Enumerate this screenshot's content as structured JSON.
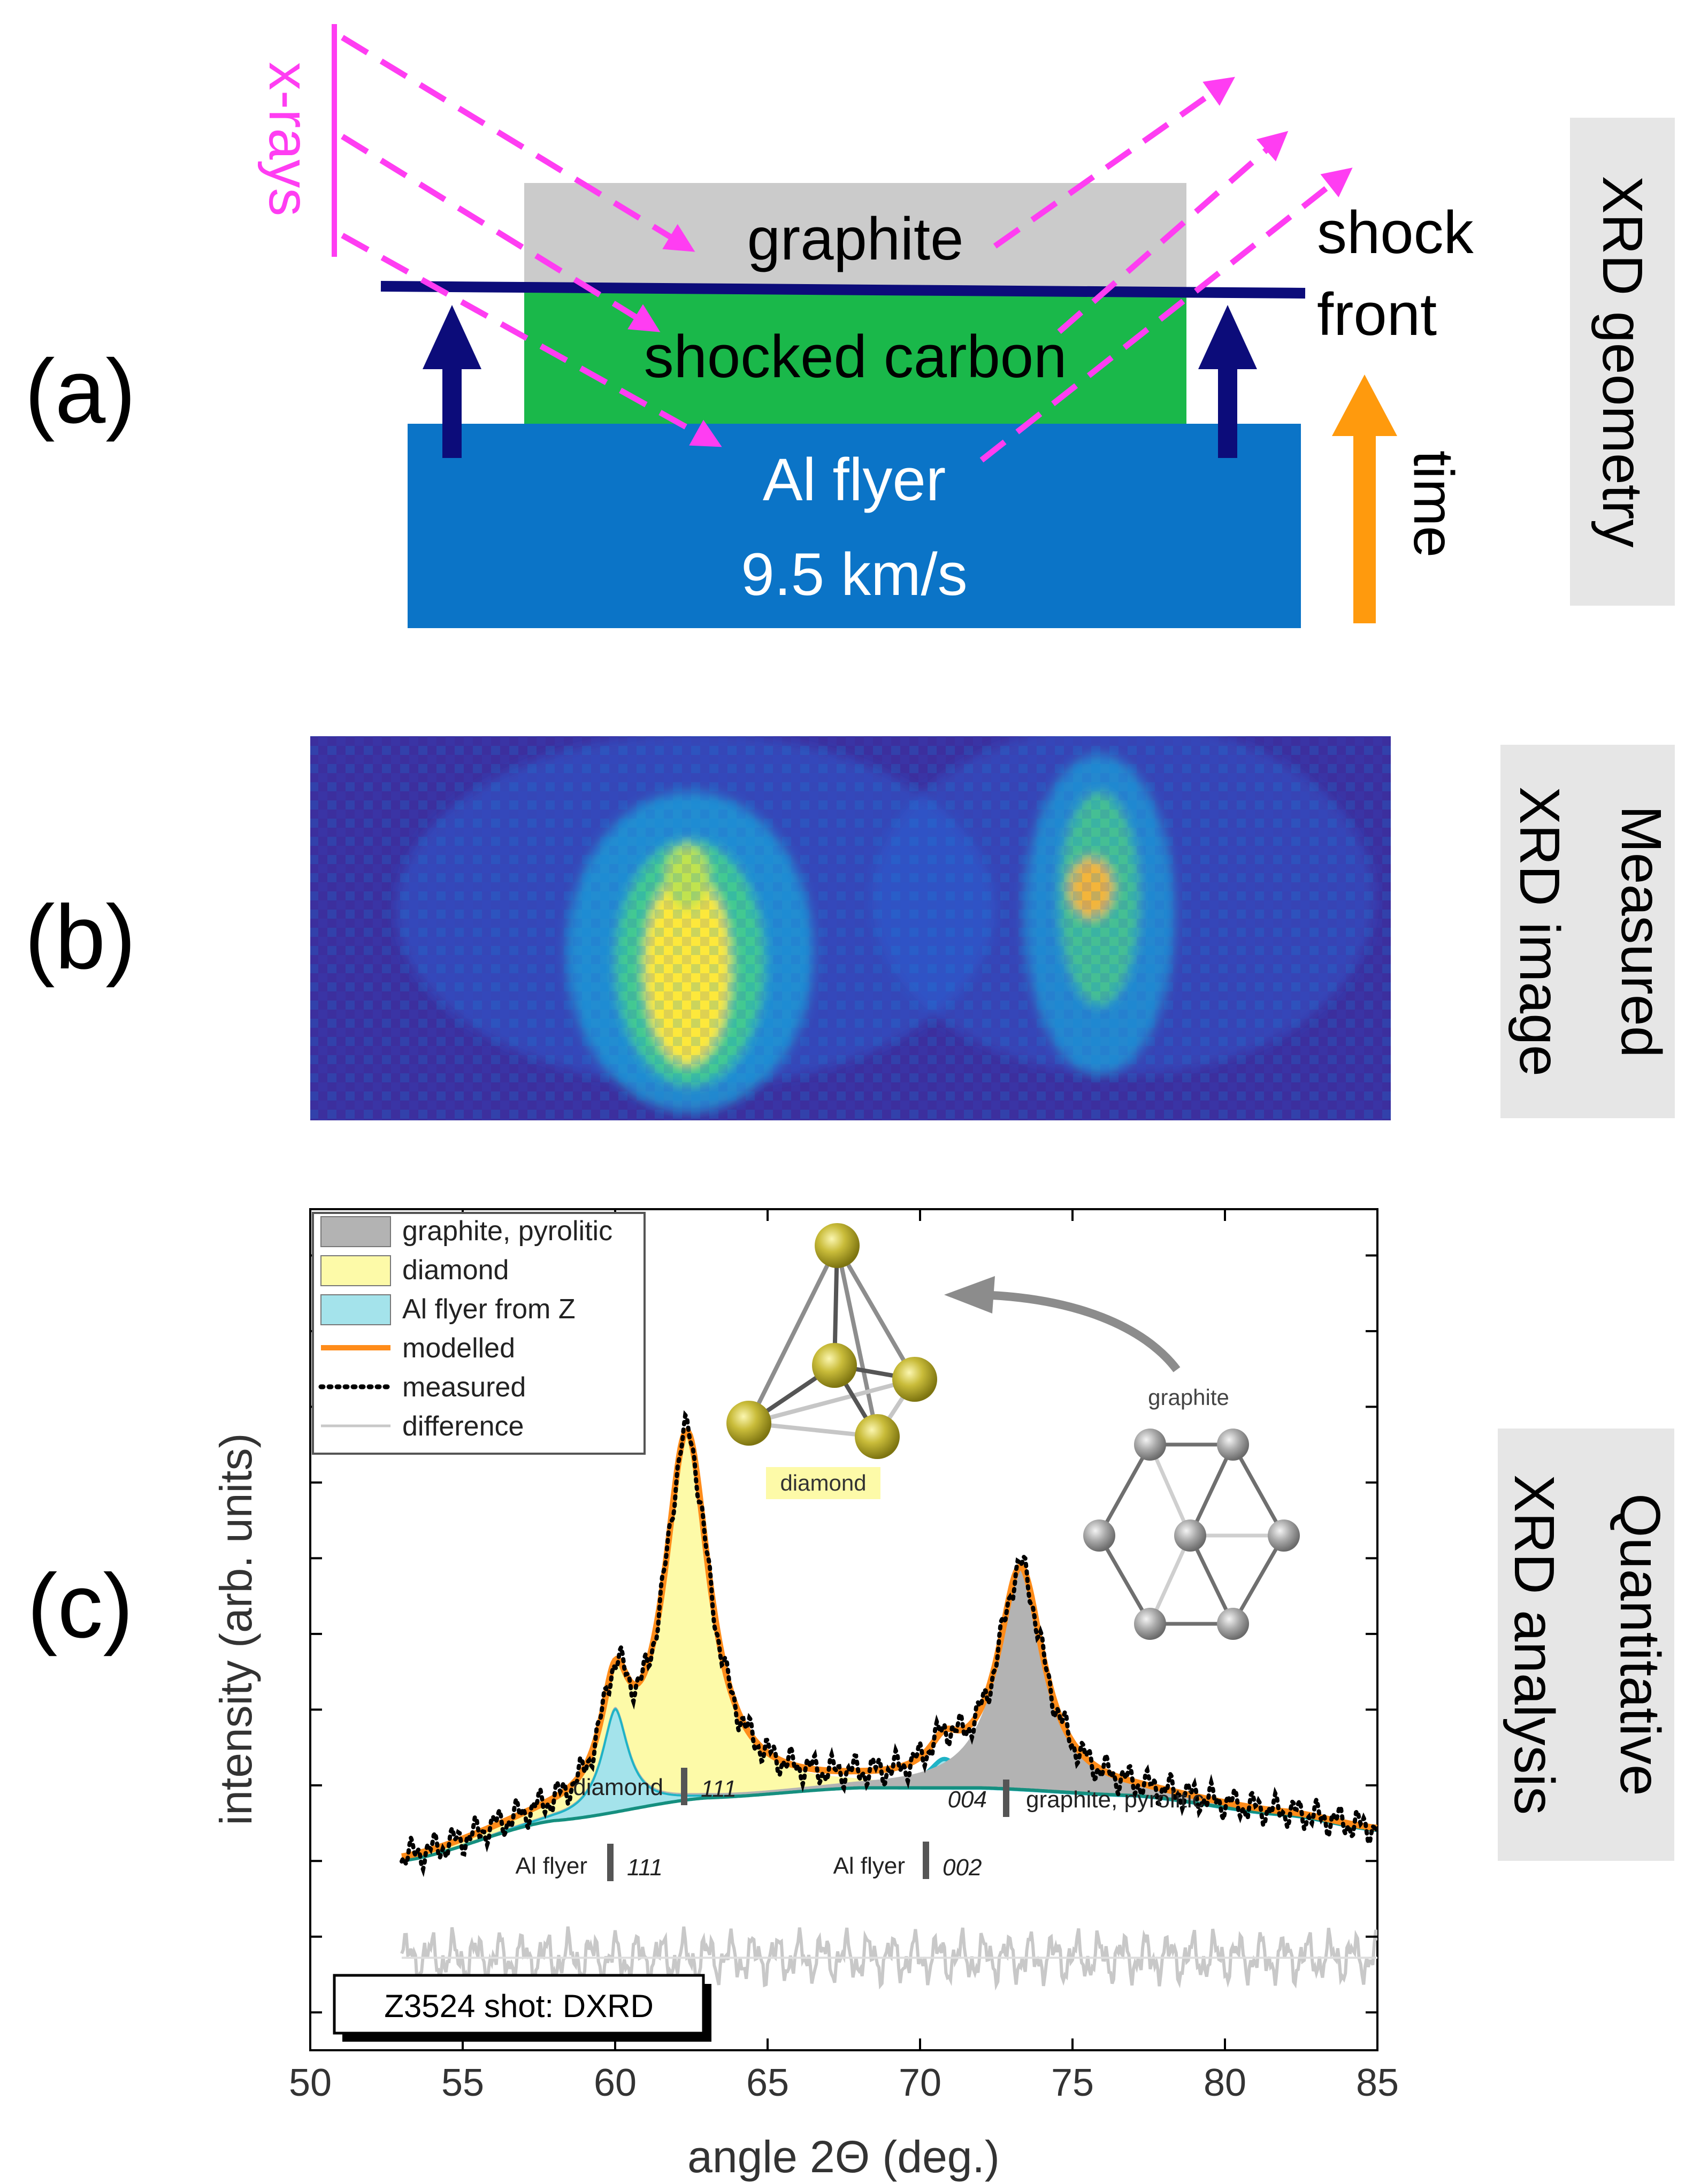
{
  "panel_labels": {
    "a": "(a)",
    "b": "(b)",
    "c": "(c)"
  },
  "side_labels": {
    "a": "XRD geometry",
    "b": [
      "Measured",
      "XRD image"
    ],
    "c": [
      "Quantitative",
      "XRD analysis"
    ]
  },
  "panel_a": {
    "xrays_label": "x-rays",
    "graphite_label": "graphite",
    "shocked_label": "shocked carbon",
    "flyer_label": "Al flyer",
    "flyer_speed": "9.5 km/s",
    "shock_front": [
      "shock",
      "front"
    ],
    "time_label": "time"
  },
  "chart_data": {
    "type": "line",
    "title": "Z3524 shot: DXRD",
    "xlabel": "angle 2Θ (deg.)",
    "ylabel": "intensity (arb. units)",
    "xlim": [
      50,
      85
    ],
    "ylim": [
      0,
      1
    ],
    "xticks": [
      50,
      55,
      60,
      65,
      70,
      75,
      80,
      85
    ],
    "legend": [
      {
        "label": "graphite, pyrolitic",
        "style": "fill",
        "color": "#b3b3b3"
      },
      {
        "label": "diamond",
        "style": "fill",
        "color": "#fdfaa8"
      },
      {
        "label": "Al flyer from Z",
        "style": "fill",
        "color": "#a4e3eb"
      },
      {
        "label": "modelled",
        "style": "line",
        "color": "#ff8c1a"
      },
      {
        "label": "measured",
        "style": "dots",
        "color": "#000000"
      },
      {
        "label": "difference",
        "style": "line",
        "color": "#c8c8c8"
      }
    ],
    "peaks": [
      {
        "name": "Al flyer 111",
        "center": 60.0,
        "width": 0.55,
        "height": 0.124,
        "color": "#a4e3eb"
      },
      {
        "name": "diamond 111",
        "center": 62.35,
        "width": 0.9,
        "height": 0.43,
        "color": "#fdfaa8"
      },
      {
        "name": "Al flyer 002",
        "center": 70.8,
        "width": 0.6,
        "height": 0.034,
        "color": "#a4e3eb"
      },
      {
        "name": "graphite 004",
        "center": 73.3,
        "width": 0.9,
        "height": 0.26,
        "color": "#b3b3b3"
      }
    ],
    "background": {
      "x": [
        53,
        58,
        63,
        68,
        72,
        77,
        82,
        85
      ],
      "y": [
        0.225,
        0.273,
        0.3,
        0.312,
        0.312,
        0.303,
        0.28,
        0.262
      ]
    },
    "markers": [
      {
        "phase": "diamond",
        "index": "111",
        "x": 62.3
      },
      {
        "phase": "graphite, pyrolitic",
        "index": "004",
        "x": 73.3
      },
      {
        "phase": "Al flyer",
        "index": "111",
        "x": 60.1
      },
      {
        "phase": "Al flyer",
        "index": "002",
        "x": 70.8
      }
    ],
    "insets": {
      "diamond_label": "diamond",
      "graphite_label": "graphite"
    }
  }
}
